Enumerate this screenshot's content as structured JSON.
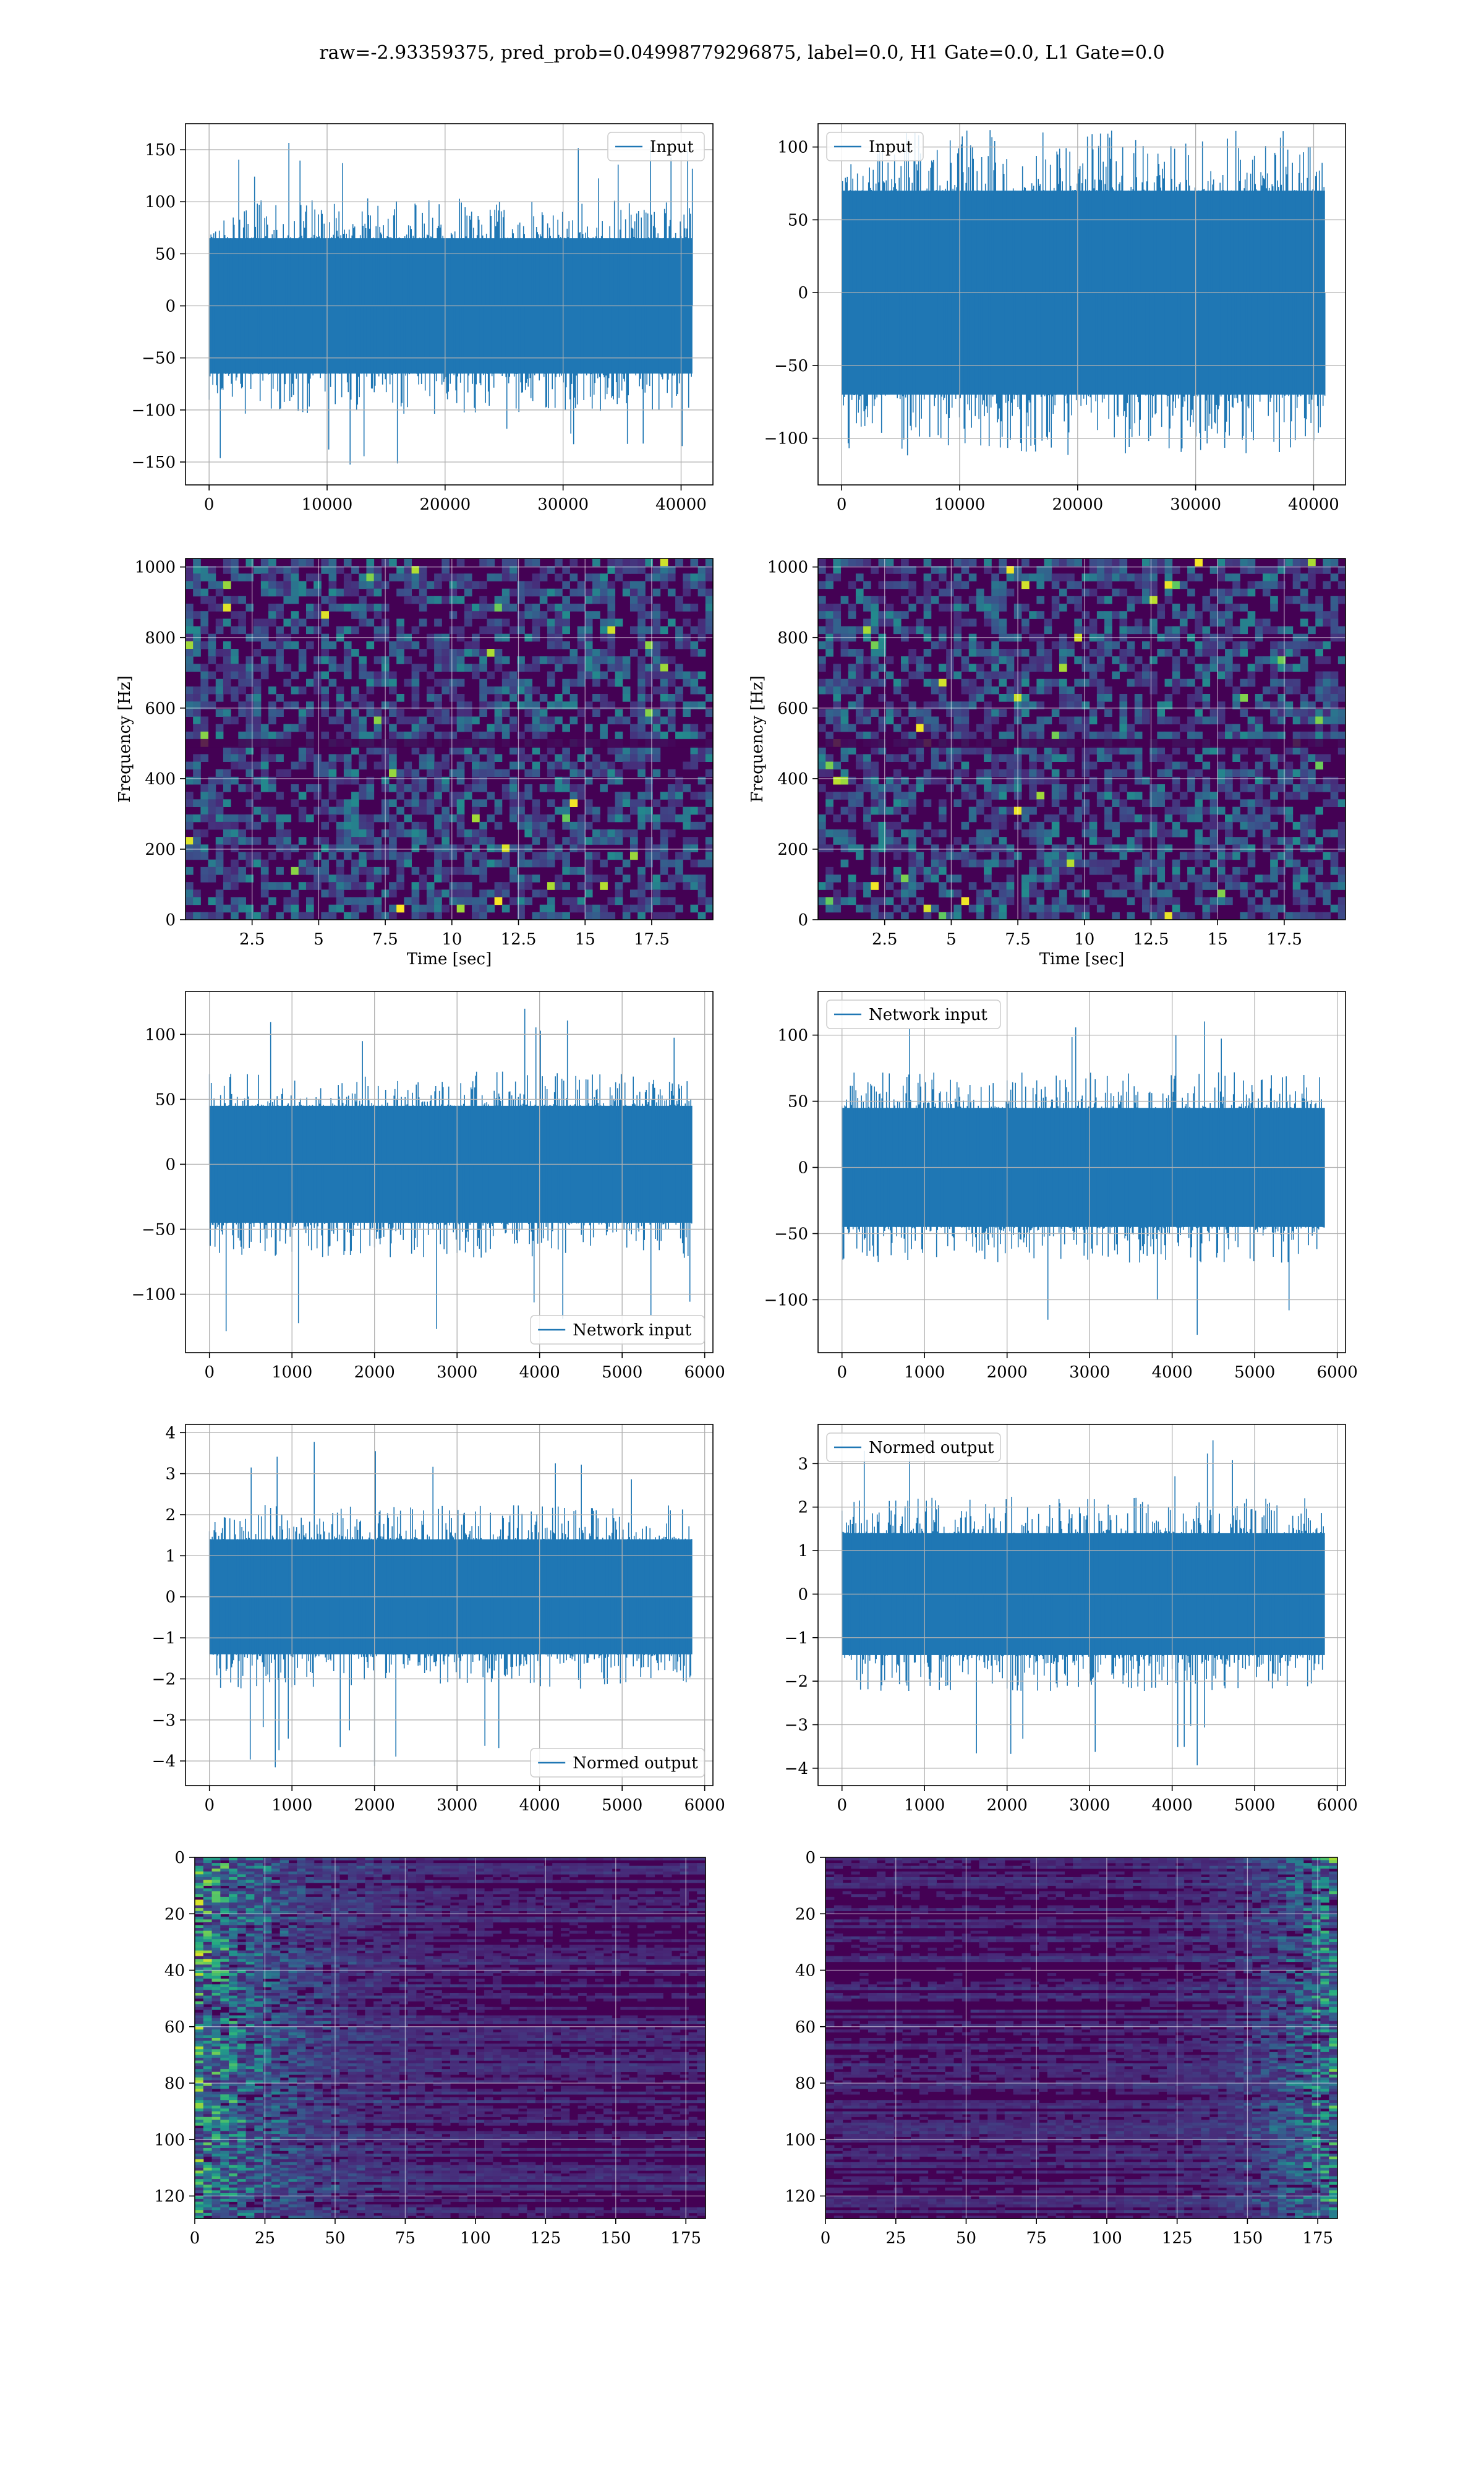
{
  "title": "raw=-2.93359375, pred_prob=0.04998779296875, label=0.0, H1 Gate=0.0, L1 Gate=0.0",
  "colors": {
    "line": "#1f77b4",
    "grid": "#b0b0b0",
    "viridis_dark": "#440154"
  },
  "chart_data": [
    {
      "id": "h1-input",
      "type": "line",
      "grid": true,
      "legend": {
        "entries": [
          "Input"
        ],
        "placement": "top-right"
      },
      "xlim": [
        -2000,
        42700
      ],
      "ylim": [
        -172,
        175
      ],
      "xticks": [
        0,
        10000,
        20000,
        30000,
        40000
      ],
      "yticks": [
        -150,
        -100,
        -50,
        0,
        50,
        100,
        150
      ],
      "xlabel": "",
      "ylabel": "",
      "series": [
        {
          "name": "Input",
          "n_samples": 40960,
          "band": [
            -65,
            65
          ],
          "peaks": [
            -155,
            162
          ]
        }
      ]
    },
    {
      "id": "l1-input",
      "type": "line",
      "grid": true,
      "legend": {
        "entries": [
          "Input"
        ],
        "placement": "top-left"
      },
      "xlim": [
        -2000,
        42700
      ],
      "ylim": [
        -132,
        116
      ],
      "xticks": [
        0,
        10000,
        20000,
        30000,
        40000
      ],
      "yticks": [
        -100,
        -50,
        0,
        50,
        100
      ],
      "xlabel": "",
      "ylabel": "",
      "series": [
        {
          "name": "Input",
          "n_samples": 40960,
          "band": [
            -70,
            70
          ],
          "peaks": [
            -120,
            112
          ]
        }
      ]
    },
    {
      "id": "h1-spectrogram",
      "type": "heatmap",
      "grid": true,
      "colormap": "viridis",
      "xlim": [
        0,
        19.8
      ],
      "ylim": [
        0,
        1024
      ],
      "xticks": [
        2.5,
        5.0,
        7.5,
        10.0,
        12.5,
        15.0,
        17.5
      ],
      "yticks": [
        0,
        200,
        400,
        600,
        800,
        1000
      ],
      "xlabel": "Time [sec]",
      "ylabel": "Frequency [Hz]"
    },
    {
      "id": "l1-spectrogram",
      "type": "heatmap",
      "grid": true,
      "colormap": "viridis",
      "xlim": [
        0,
        19.8
      ],
      "ylim": [
        0,
        1024
      ],
      "xticks": [
        2.5,
        5.0,
        7.5,
        10.0,
        12.5,
        15.0,
        17.5
      ],
      "yticks": [
        0,
        200,
        400,
        600,
        800,
        1000
      ],
      "xlabel": "Time [sec]",
      "ylabel": "Frequency [Hz]"
    },
    {
      "id": "h1-network-input",
      "type": "line",
      "grid": true,
      "legend": {
        "entries": [
          "Network input"
        ],
        "placement": "bottom-right"
      },
      "xlim": [
        -290,
        6100
      ],
      "ylim": [
        -145,
        133
      ],
      "xticks": [
        0,
        1000,
        2000,
        3000,
        4000,
        5000,
        6000
      ],
      "yticks": [
        -100,
        -50,
        0,
        50,
        100
      ],
      "xlabel": "",
      "ylabel": "",
      "series": [
        {
          "name": "Network input",
          "n_samples": 5850,
          "band": [
            -45,
            45
          ],
          "peaks": [
            -133,
            120
          ]
        }
      ]
    },
    {
      "id": "l1-network-input",
      "type": "line",
      "grid": true,
      "legend": {
        "entries": [
          "Network input"
        ],
        "placement": "top-left"
      },
      "xlim": [
        -290,
        6100
      ],
      "ylim": [
        -140,
        133
      ],
      "xticks": [
        0,
        1000,
        2000,
        3000,
        4000,
        5000,
        6000
      ],
      "yticks": [
        -100,
        -50,
        0,
        50,
        100
      ],
      "xlabel": "",
      "ylabel": "",
      "series": [
        {
          "name": "Network input",
          "n_samples": 5850,
          "band": [
            -45,
            45
          ],
          "peaks": [
            -127,
            117
          ]
        }
      ]
    },
    {
      "id": "h1-normed-output",
      "type": "line",
      "grid": true,
      "legend": {
        "entries": [
          "Normed output"
        ],
        "placement": "bottom-right"
      },
      "xlim": [
        -290,
        6100
      ],
      "ylim": [
        -4.6,
        4.2
      ],
      "xticks": [
        0,
        1000,
        2000,
        3000,
        4000,
        5000,
        6000
      ],
      "yticks": [
        -4,
        -3,
        -2,
        -1,
        0,
        1,
        2,
        3,
        4
      ],
      "xlabel": "",
      "ylabel": "",
      "series": [
        {
          "name": "Normed output",
          "n_samples": 5850,
          "band": [
            -1.4,
            1.4
          ],
          "peaks": [
            -4.2,
            3.8
          ]
        }
      ]
    },
    {
      "id": "l1-normed-output",
      "type": "line",
      "grid": true,
      "legend": {
        "entries": [
          "Normed output"
        ],
        "placement": "top-left"
      },
      "xlim": [
        -290,
        6100
      ],
      "ylim": [
        -4.4,
        3.9
      ],
      "xticks": [
        0,
        1000,
        2000,
        3000,
        4000,
        5000,
        6000
      ],
      "yticks": [
        -4,
        -3,
        -2,
        -1,
        0,
        1,
        2,
        3
      ],
      "xlabel": "",
      "ylabel": "",
      "series": [
        {
          "name": "Normed output",
          "n_samples": 5850,
          "band": [
            -1.4,
            1.4
          ],
          "peaks": [
            -4.0,
            3.6
          ]
        }
      ]
    },
    {
      "id": "h1-feature-map",
      "type": "heatmap",
      "grid": true,
      "colormap": "viridis",
      "rows": 128,
      "cols": 182,
      "activity": "left",
      "xlim": [
        0,
        182
      ],
      "ylim": [
        0,
        128
      ],
      "y_inverted": true,
      "xticks": [
        0,
        25,
        50,
        75,
        100,
        125,
        150,
        175
      ],
      "yticks": [
        0,
        20,
        40,
        60,
        80,
        100,
        120
      ],
      "xlabel": "",
      "ylabel": ""
    },
    {
      "id": "l1-feature-map",
      "type": "heatmap",
      "grid": true,
      "colormap": "viridis",
      "rows": 128,
      "cols": 182,
      "activity": "right",
      "xlim": [
        0,
        182
      ],
      "ylim": [
        0,
        128
      ],
      "y_inverted": true,
      "xticks": [
        0,
        25,
        50,
        75,
        100,
        125,
        150,
        175
      ],
      "yticks": [
        0,
        20,
        40,
        60,
        80,
        100,
        120
      ],
      "xlabel": "",
      "ylabel": ""
    }
  ]
}
